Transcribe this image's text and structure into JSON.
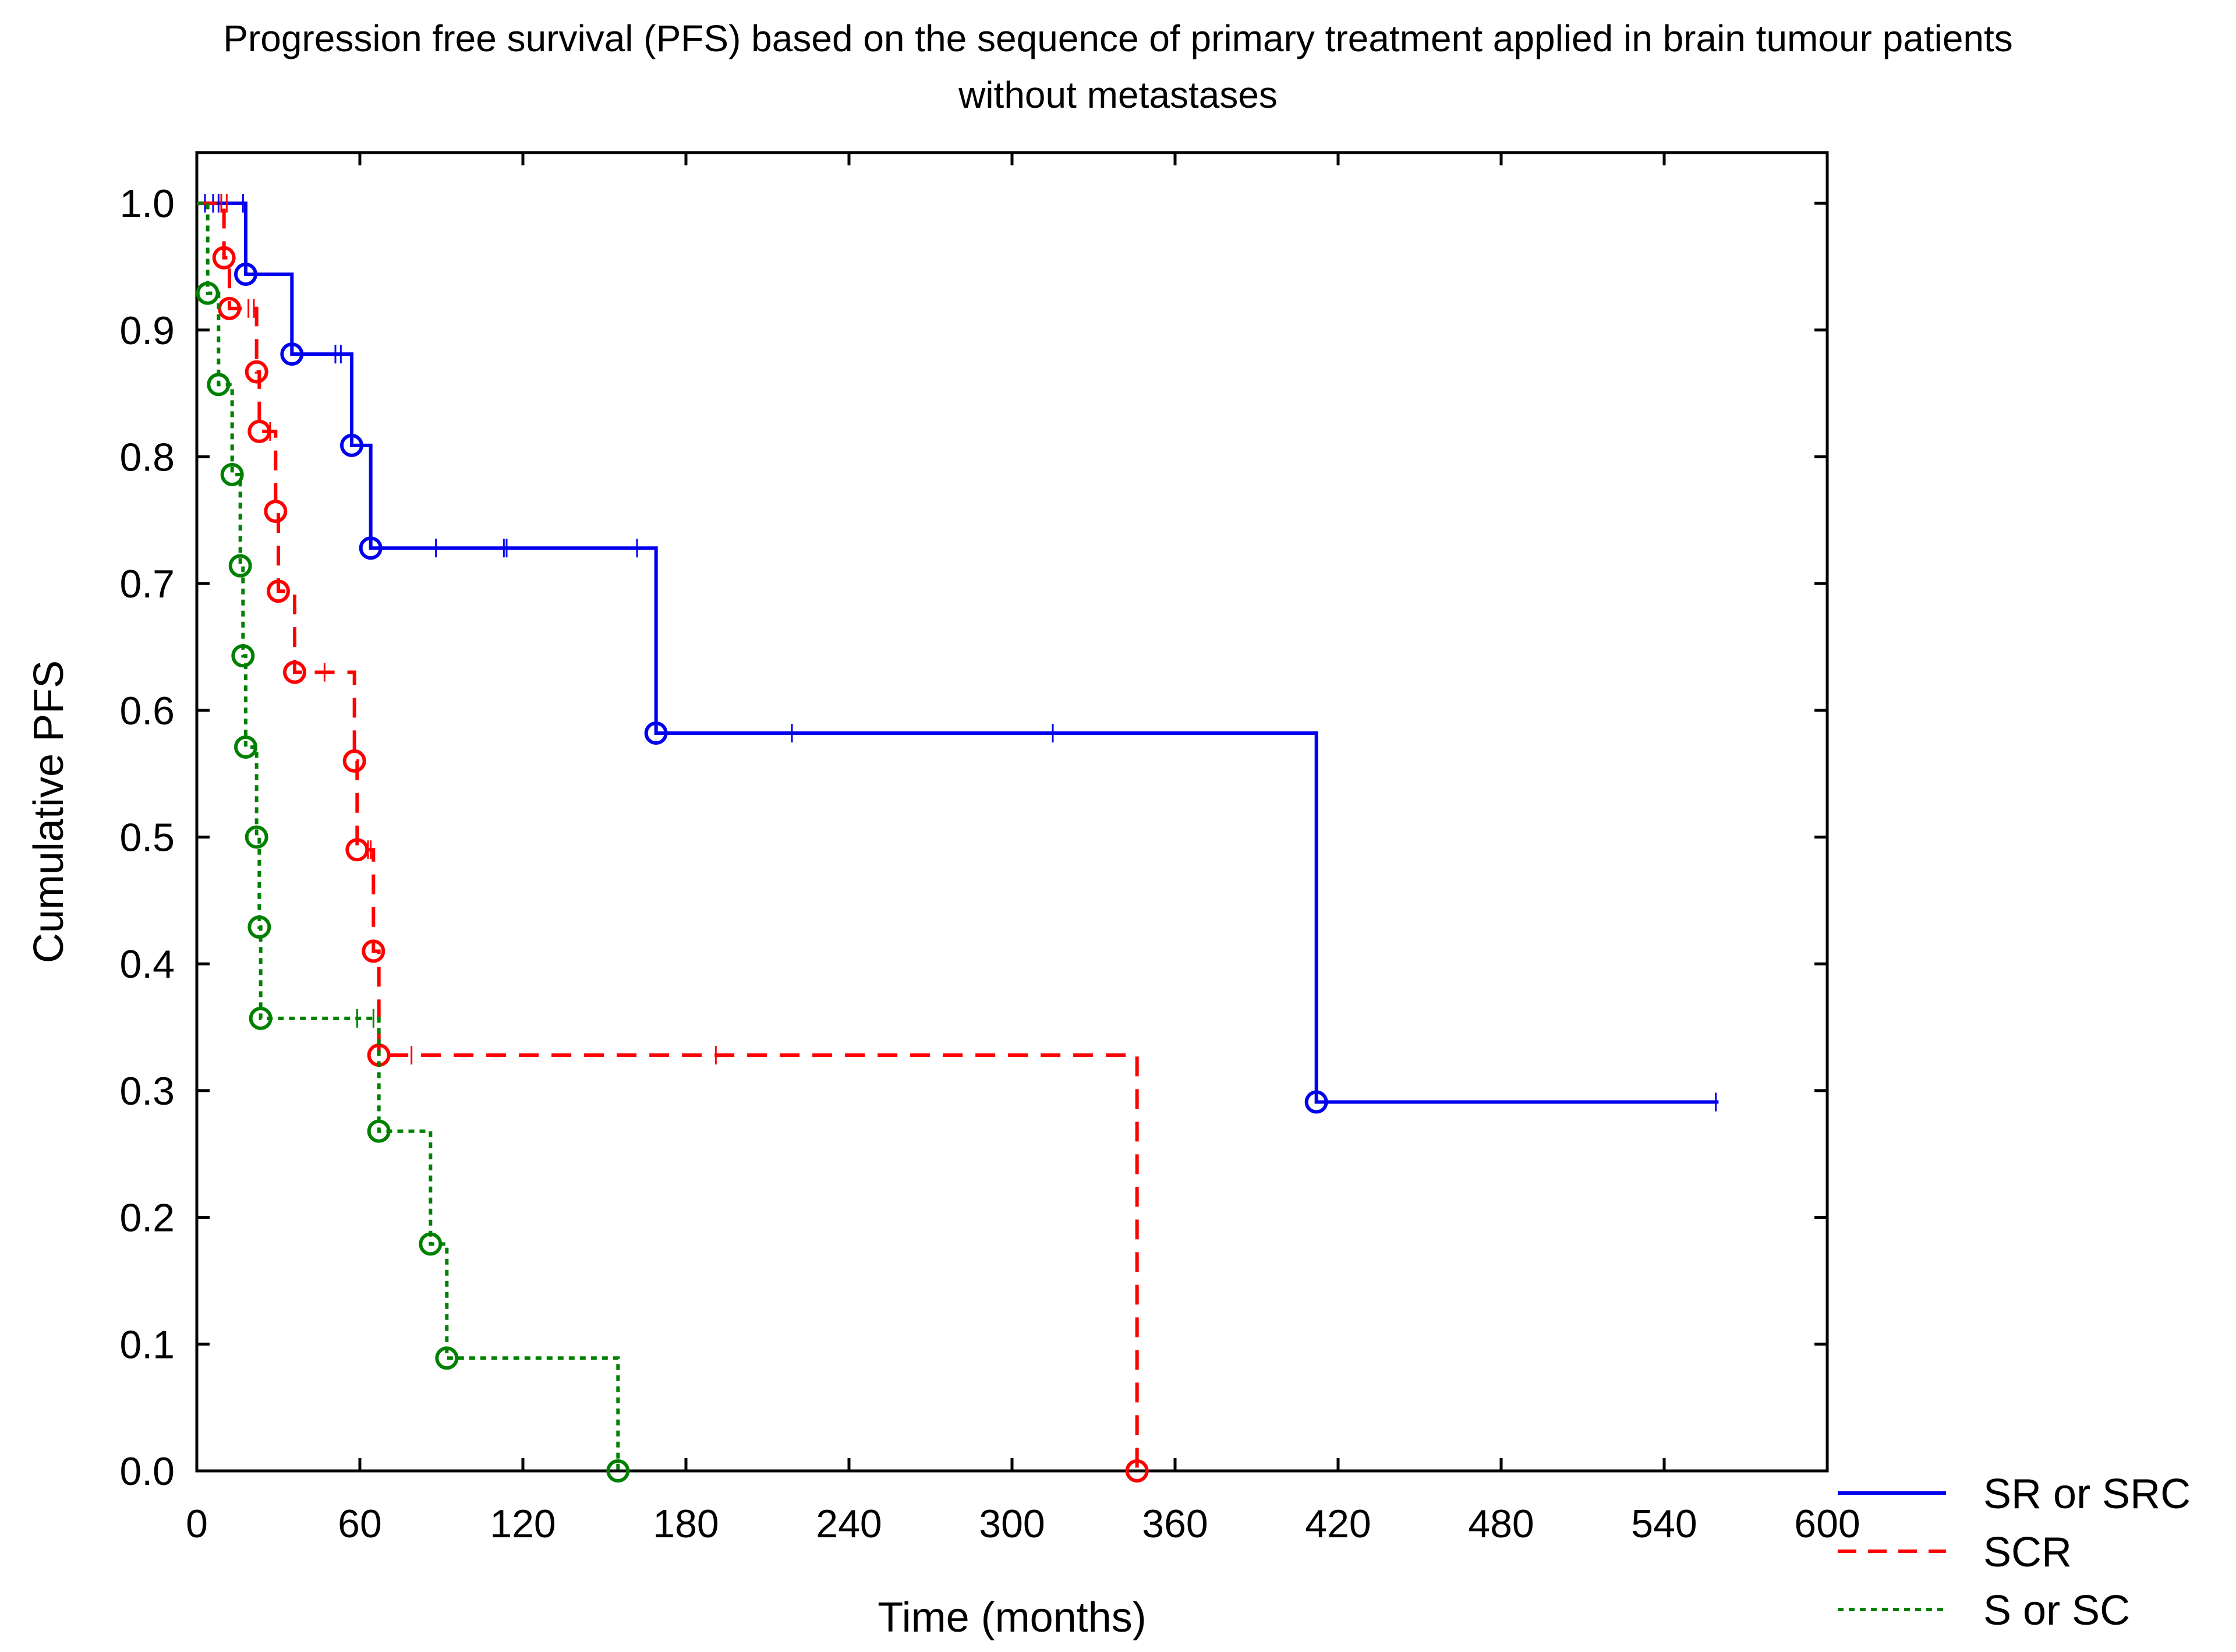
{
  "chart_data": {
    "type": "line",
    "title_lines": [
      "Progression free survival (PFS) based on the sequence of primary treatment applied in brain tumour patients",
      "without metastases"
    ],
    "xlabel": "Time (months)",
    "ylabel": "Cumulative PFS",
    "xlim": [
      0,
      600
    ],
    "ylim": [
      0,
      1.04
    ],
    "x_ticks": [
      0,
      60,
      120,
      180,
      240,
      300,
      360,
      420,
      480,
      540,
      600
    ],
    "x_tick_labels": [
      "0",
      "60",
      "120",
      "180",
      "240",
      "300",
      "360",
      "420",
      "480",
      "540",
      "600"
    ],
    "y_ticks": [
      0,
      0.1,
      0.2,
      0.3,
      0.4,
      0.5,
      0.6,
      0.7,
      0.8,
      0.9,
      1.0
    ],
    "y_tick_labels": [
      "0.0",
      "0.1",
      "0.2",
      "0.3",
      "0.4",
      "0.5",
      "0.6",
      "0.7",
      "0.8",
      "0.9",
      "1.0"
    ],
    "grid": false,
    "legend_position": "bottom-right outside",
    "series": [
      {
        "name": "SR or SRC",
        "color": "#0000ee",
        "line_style": "solid",
        "steps": [
          [
            0,
            1.0
          ],
          [
            18,
            0.944
          ],
          [
            35,
            0.881
          ],
          [
            57,
            0.809
          ],
          [
            64,
            0.728
          ],
          [
            169,
            0.582
          ],
          [
            412,
            0.291
          ],
          [
            560,
            0.291
          ]
        ],
        "events": [
          [
            18,
            0.944
          ],
          [
            35,
            0.881
          ],
          [
            57,
            0.809
          ],
          [
            64,
            0.728
          ],
          [
            169,
            0.582
          ],
          [
            412,
            0.291
          ]
        ],
        "censored": [
          [
            3,
            1.0
          ],
          [
            6,
            1.0
          ],
          [
            8,
            1.0
          ],
          [
            17,
            1.0
          ],
          [
            51,
            0.881
          ],
          [
            53,
            0.881
          ],
          [
            88,
            0.728
          ],
          [
            113,
            0.728
          ],
          [
            114,
            0.728
          ],
          [
            162,
            0.728
          ],
          [
            219,
            0.582
          ],
          [
            315,
            0.582
          ],
          [
            559,
            0.291
          ]
        ]
      },
      {
        "name": "SCR",
        "color": "#ff0000",
        "line_style": "dashed",
        "steps": [
          [
            0,
            1.0
          ],
          [
            10,
            0.957
          ],
          [
            12,
            0.917
          ],
          [
            22,
            0.867
          ],
          [
            23,
            0.82
          ],
          [
            29,
            0.757
          ],
          [
            30,
            0.694
          ],
          [
            36,
            0.63
          ],
          [
            58,
            0.56
          ],
          [
            59,
            0.49
          ],
          [
            65,
            0.41
          ],
          [
            67,
            0.328
          ],
          [
            346,
            0.0
          ]
        ],
        "events": [
          [
            10,
            0.957
          ],
          [
            12,
            0.917
          ],
          [
            22,
            0.867
          ],
          [
            23,
            0.82
          ],
          [
            29,
            0.757
          ],
          [
            30,
            0.694
          ],
          [
            36,
            0.63
          ],
          [
            58,
            0.56
          ],
          [
            59,
            0.49
          ],
          [
            65,
            0.41
          ],
          [
            67,
            0.328
          ],
          [
            346,
            0.0
          ]
        ],
        "censored": [
          [
            9,
            1.0
          ],
          [
            11,
            1.0
          ],
          [
            19,
            0.917
          ],
          [
            21,
            0.917
          ],
          [
            27,
            0.82
          ],
          [
            47,
            0.63
          ],
          [
            63,
            0.49
          ],
          [
            64,
            0.49
          ],
          [
            79,
            0.328
          ],
          [
            191,
            0.328
          ]
        ]
      },
      {
        "name": "S or SC",
        "color": "#008000",
        "line_style": "dotted",
        "steps": [
          [
            0,
            1.0
          ],
          [
            4,
            0.929
          ],
          [
            8,
            0.857
          ],
          [
            13,
            0.786
          ],
          [
            16,
            0.714
          ],
          [
            17,
            0.643
          ],
          [
            18,
            0.571
          ],
          [
            22,
            0.5
          ],
          [
            23,
            0.429
          ],
          [
            23.5,
            0.357
          ],
          [
            67,
            0.268
          ],
          [
            86,
            0.179
          ],
          [
            92,
            0.089
          ],
          [
            155,
            0.0
          ]
        ],
        "events": [
          [
            4,
            0.929
          ],
          [
            8,
            0.857
          ],
          [
            13,
            0.786
          ],
          [
            16,
            0.714
          ],
          [
            17,
            0.643
          ],
          [
            18,
            0.571
          ],
          [
            22,
            0.5
          ],
          [
            23,
            0.429
          ],
          [
            23.5,
            0.357
          ],
          [
            67,
            0.268
          ],
          [
            86,
            0.179
          ],
          [
            92,
            0.089
          ],
          [
            155,
            0.0
          ]
        ],
        "censored": [
          [
            59,
            0.357
          ],
          [
            65,
            0.357
          ]
        ]
      }
    ]
  }
}
